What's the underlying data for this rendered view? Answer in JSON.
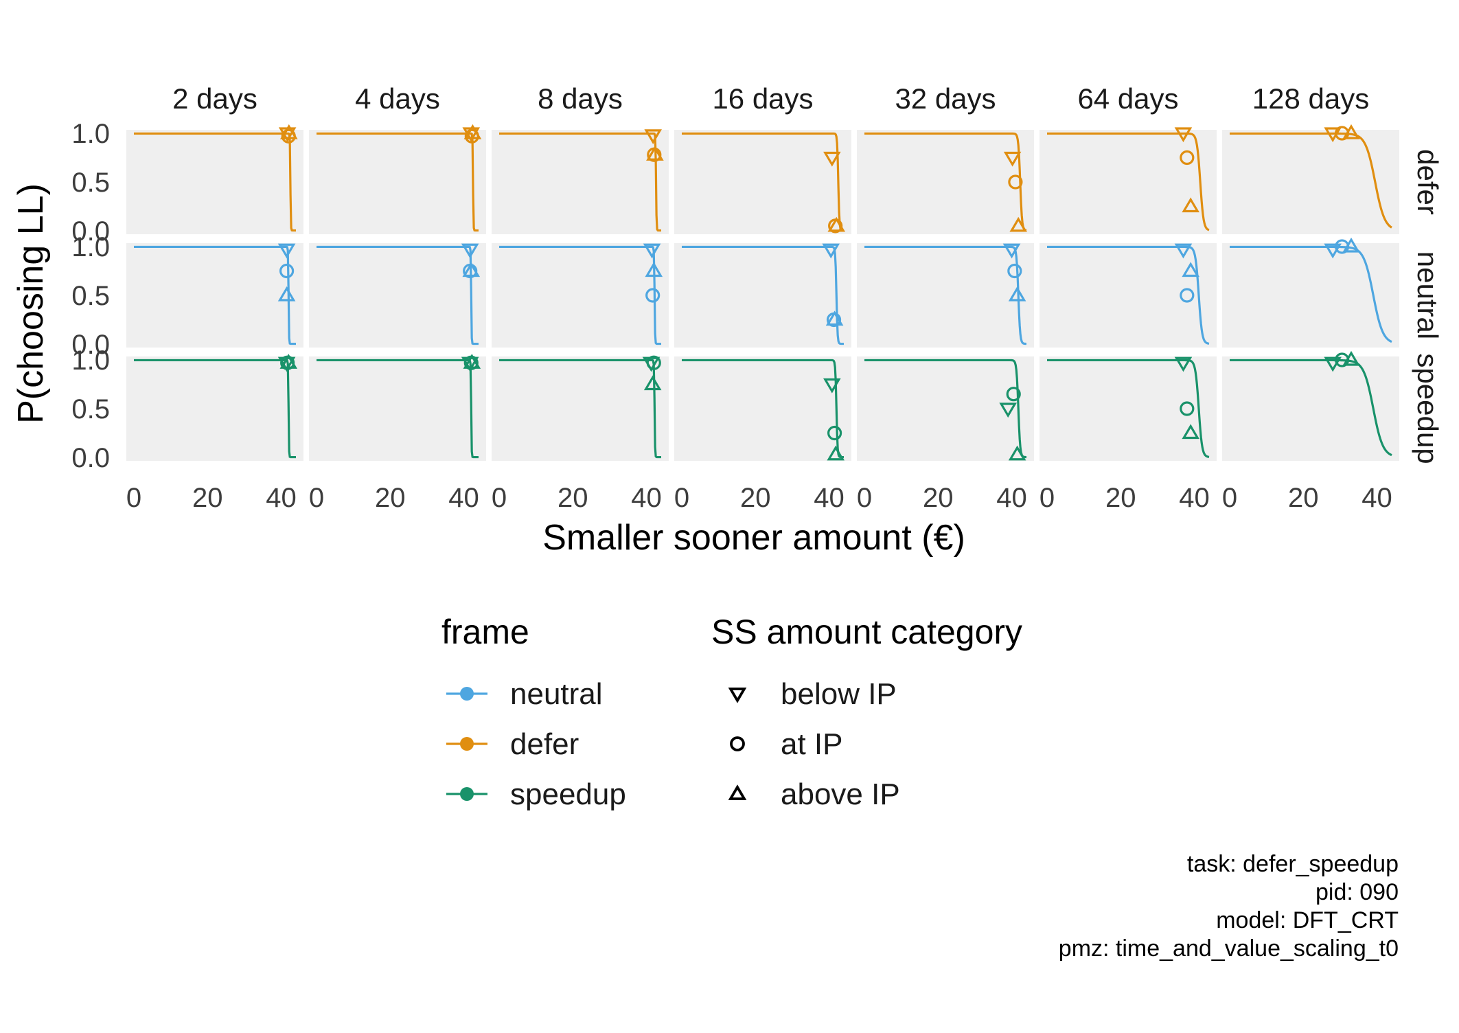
{
  "chart_data": {
    "type": "scatter",
    "xlabel": "Smaller sooner amount (€)",
    "ylabel": "P(choosing LL)",
    "xlim": [
      0,
      44
    ],
    "ylim": [
      0,
      1
    ],
    "x_ticks": [
      "0",
      "20",
      "40"
    ],
    "y_ticks": [
      "0.0",
      "0.5",
      "1.0"
    ],
    "grid": false,
    "panel_background": "#efefef",
    "facet_columns": [
      "2 days",
      "4 days",
      "8 days",
      "16 days",
      "32 days",
      "64 days",
      "128 days"
    ],
    "facet_rows": [
      "defer",
      "neutral",
      "speedup"
    ],
    "colors": {
      "neutral": "#4ea6e0",
      "defer": "#e08e10",
      "speedup": "#19926a"
    },
    "legend": {
      "placement": "bottom",
      "frame_title": "frame",
      "frame_items": [
        "neutral",
        "defer",
        "speedup"
      ],
      "shape_title": "SS amount category",
      "shape_items": [
        {
          "label": "below IP",
          "shape": "triangle-down"
        },
        {
          "label": "at IP",
          "shape": "circle"
        },
        {
          "label": "above IP",
          "shape": "triangle-up"
        }
      ]
    },
    "curves": {
      "defer": [
        {
          "mid": 42.5,
          "w": 0.06
        },
        {
          "mid": 42.5,
          "w": 0.06
        },
        {
          "mid": 42.6,
          "w": 0.07
        },
        {
          "mid": 42.5,
          "w": 0.15
        },
        {
          "mid": 42.3,
          "w": 0.25
        },
        {
          "mid": 41.6,
          "w": 0.45
        },
        {
          "mid": 39.5,
          "w": 1.3
        }
      ],
      "neutral": [
        {
          "mid": 42.0,
          "w": 0.06
        },
        {
          "mid": 42.0,
          "w": 0.06
        },
        {
          "mid": 42.2,
          "w": 0.07
        },
        {
          "mid": 42.0,
          "w": 0.15
        },
        {
          "mid": 41.8,
          "w": 0.25
        },
        {
          "mid": 41.2,
          "w": 0.45
        },
        {
          "mid": 39.0,
          "w": 1.3
        }
      ],
      "speedup": [
        {
          "mid": 42.0,
          "w": 0.06
        },
        {
          "mid": 42.0,
          "w": 0.06
        },
        {
          "mid": 42.2,
          "w": 0.07
        },
        {
          "mid": 42.0,
          "w": 0.15
        },
        {
          "mid": 41.8,
          "w": 0.25
        },
        {
          "mid": 41.2,
          "w": 0.45
        },
        {
          "mid": 39.0,
          "w": 1.3
        }
      ]
    },
    "points": {
      "defer": [
        [
          {
            "c": "below IP",
            "x": 41.7,
            "y": 1.0
          },
          {
            "c": "at IP",
            "x": 42.0,
            "y": 0.97
          },
          {
            "c": "above IP",
            "x": 42.1,
            "y": 1.0
          }
        ],
        [
          {
            "c": "below IP",
            "x": 42.0,
            "y": 1.0
          },
          {
            "c": "at IP",
            "x": 42.2,
            "y": 0.97
          },
          {
            "c": "above IP",
            "x": 42.4,
            "y": 1.0
          }
        ],
        [
          {
            "c": "below IP",
            "x": 41.8,
            "y": 0.98
          },
          {
            "c": "at IP",
            "x": 42.1,
            "y": 0.78
          },
          {
            "c": "above IP",
            "x": 42.3,
            "y": 0.78
          }
        ],
        [
          {
            "c": "below IP",
            "x": 40.8,
            "y": 0.75
          },
          {
            "c": "at IP",
            "x": 41.7,
            "y": 0.05
          },
          {
            "c": "above IP",
            "x": 42.0,
            "y": 0.05
          }
        ],
        [
          {
            "c": "below IP",
            "x": 40.2,
            "y": 0.75
          },
          {
            "c": "at IP",
            "x": 41.0,
            "y": 0.5
          },
          {
            "c": "above IP",
            "x": 41.8,
            "y": 0.05
          }
        ],
        [
          {
            "c": "below IP",
            "x": 37.0,
            "y": 1.0
          },
          {
            "c": "at IP",
            "x": 38.0,
            "y": 0.75
          },
          {
            "c": "above IP",
            "x": 39.0,
            "y": 0.25
          }
        ],
        [
          {
            "c": "below IP",
            "x": 28.0,
            "y": 1.0
          },
          {
            "c": "at IP",
            "x": 30.5,
            "y": 1.0
          },
          {
            "c": "above IP",
            "x": 33.0,
            "y": 1.0
          }
        ]
      ],
      "neutral": [
        [
          {
            "c": "below IP",
            "x": 41.5,
            "y": 0.97
          },
          {
            "c": "at IP",
            "x": 41.5,
            "y": 0.75
          },
          {
            "c": "above IP",
            "x": 41.5,
            "y": 0.5
          }
        ],
        [
          {
            "c": "below IP",
            "x": 41.7,
            "y": 0.97
          },
          {
            "c": "at IP",
            "x": 41.7,
            "y": 0.75
          },
          {
            "c": "above IP",
            "x": 42.0,
            "y": 0.75
          }
        ],
        [
          {
            "c": "below IP",
            "x": 41.5,
            "y": 0.97
          },
          {
            "c": "at IP",
            "x": 41.7,
            "y": 0.5
          },
          {
            "c": "above IP",
            "x": 42.0,
            "y": 0.75
          }
        ],
        [
          {
            "c": "below IP",
            "x": 40.5,
            "y": 0.97
          },
          {
            "c": "at IP",
            "x": 41.3,
            "y": 0.25
          },
          {
            "c": "above IP",
            "x": 41.5,
            "y": 0.25
          }
        ],
        [
          {
            "c": "below IP",
            "x": 40.0,
            "y": 0.97
          },
          {
            "c": "at IP",
            "x": 40.8,
            "y": 0.75
          },
          {
            "c": "above IP",
            "x": 41.5,
            "y": 0.5
          }
        ],
        [
          {
            "c": "below IP",
            "x": 37.0,
            "y": 0.97
          },
          {
            "c": "at IP",
            "x": 38.0,
            "y": 0.5
          },
          {
            "c": "above IP",
            "x": 39.0,
            "y": 0.75
          }
        ],
        [
          {
            "c": "below IP",
            "x": 28.0,
            "y": 0.97
          },
          {
            "c": "at IP",
            "x": 30.5,
            "y": 1.0
          },
          {
            "c": "above IP",
            "x": 33.0,
            "y": 1.0
          }
        ]
      ],
      "speedup": [
        [
          {
            "c": "below IP",
            "x": 41.5,
            "y": 0.97
          },
          {
            "c": "at IP",
            "x": 41.7,
            "y": 0.97
          },
          {
            "c": "above IP",
            "x": 42.0,
            "y": 0.97
          }
        ],
        [
          {
            "c": "below IP",
            "x": 41.7,
            "y": 0.97
          },
          {
            "c": "at IP",
            "x": 42.0,
            "y": 0.97
          },
          {
            "c": "above IP",
            "x": 42.2,
            "y": 0.97
          }
        ],
        [
          {
            "c": "below IP",
            "x": 41.3,
            "y": 0.97
          },
          {
            "c": "at IP",
            "x": 42.0,
            "y": 0.97
          },
          {
            "c": "above IP",
            "x": 41.7,
            "y": 0.75
          }
        ],
        [
          {
            "c": "below IP",
            "x": 40.8,
            "y": 0.75
          },
          {
            "c": "at IP",
            "x": 41.5,
            "y": 0.25
          },
          {
            "c": "above IP",
            "x": 41.8,
            "y": 0.03
          }
        ],
        [
          {
            "c": "below IP",
            "x": 39.0,
            "y": 0.5
          },
          {
            "c": "at IP",
            "x": 40.5,
            "y": 0.65
          },
          {
            "c": "above IP",
            "x": 41.5,
            "y": 0.03
          }
        ],
        [
          {
            "c": "below IP",
            "x": 37.0,
            "y": 0.97
          },
          {
            "c": "at IP",
            "x": 38.0,
            "y": 0.5
          },
          {
            "c": "above IP",
            "x": 39.0,
            "y": 0.25
          }
        ],
        [
          {
            "c": "below IP",
            "x": 28.0,
            "y": 0.97
          },
          {
            "c": "at IP",
            "x": 30.5,
            "y": 1.0
          },
          {
            "c": "above IP",
            "x": 33.0,
            "y": 1.0
          }
        ]
      ]
    }
  },
  "caption": {
    "line1": "task: defer_speedup",
    "line2": "pid: 090",
    "line3": "model: DFT_CRT",
    "line4": "pmz: time_and_value_scaling_t0"
  }
}
